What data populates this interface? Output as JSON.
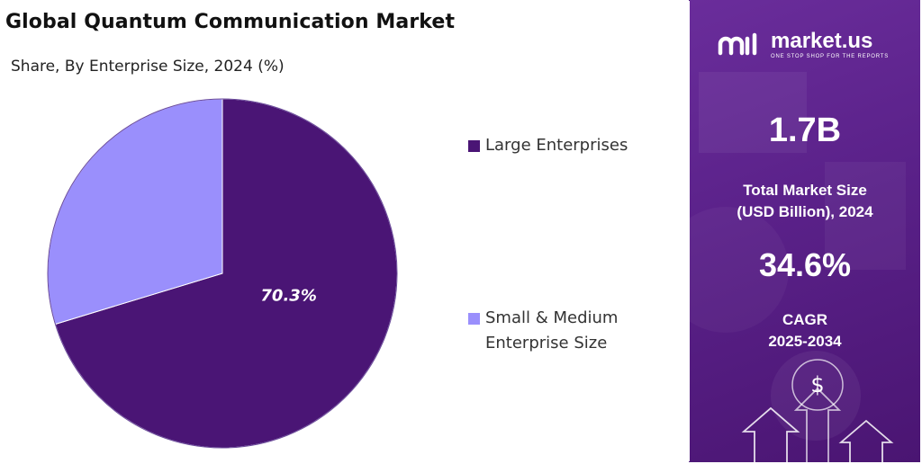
{
  "title": "Global Quantum Communication Market",
  "subtitle": "Share, By Enterprise Size, 2024 (%)",
  "chart_data": {
    "type": "pie",
    "title": "Global Quantum Communication Market",
    "subtitle": "Share, By Enterprise Size, 2024 (%)",
    "categories": [
      "Large Enterprises",
      "Small & Medium Enterprise Size"
    ],
    "values": [
      70.3,
      29.7
    ],
    "colors": [
      "#4a1575",
      "#9a8ffc"
    ],
    "data_labels": [
      "70.3%",
      ""
    ],
    "legend_position": "right"
  },
  "legend": [
    {
      "label_line1": "Large Enterprises",
      "label_line2": "",
      "color": "#4a1575"
    },
    {
      "label_line1": "Small & Medium",
      "label_line2": "Enterprise Size",
      "color": "#9a8ffc"
    }
  ],
  "side_panel": {
    "brand": "market.us",
    "tagline": "ONE STOP SHOP FOR THE REPORTS",
    "market_size_value": "1.7B",
    "market_size_label_line1": "Total Market Size",
    "market_size_label_line2": "(USD Billion), 2024",
    "cagr_value": "34.6%",
    "cagr_label_line1": "CAGR",
    "cagr_label_line2": "2025-2034",
    "dollar_symbol": "$",
    "icons": [
      "market-us-logo-icon",
      "dollar-coin-icon",
      "up-arrow-icon"
    ]
  }
}
